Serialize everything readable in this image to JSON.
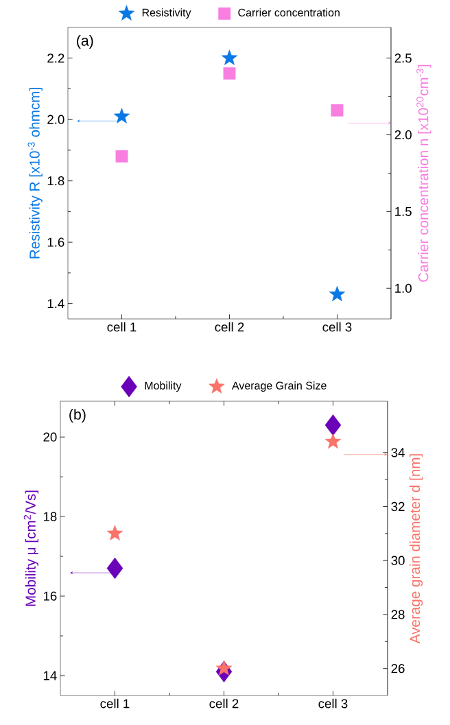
{
  "chart_data": [
    {
      "type": "scatter",
      "categories": [
        "cell 1",
        "cell 2",
        "cell 3"
      ],
      "ylabel": "Resistivity R [x10$^{-3}$ ohmcm]",
      "y2label": "Carrier concentration n [x10$^{20}$cm$^{-3}$]",
      "ylim": [
        1.35,
        2.3
      ],
      "yticks": [
        1.4,
        1.6,
        1.8,
        {
          "value": 2.0,
          "label": "2.0"
        },
        2.2
      ],
      "y2lim": [
        0.8,
        2.7
      ],
      "y2ticks": [
        {
          "value": 1.0,
          "label": "1.0"
        },
        1.5,
        {
          "value": 2.0,
          "label": "2.0"
        },
        2.5
      ],
      "legend": "top",
      "annotations": [
        "(a)"
      ],
      "series": [
        {
          "name": "Resistivity",
          "color": "#0a78e4",
          "marker": "star",
          "values": [
            2.01,
            2.2,
            1.43
          ]
        },
        {
          "name": "Carrier concentration",
          "color": "#f87ee0",
          "marker": "square",
          "axis": "y2",
          "values": [
            1.86,
            2.4,
            2.16
          ]
        }
      ]
    },
    {
      "type": "scatter",
      "categories": [
        "cell 1",
        "cell 2",
        "cell 3"
      ],
      "ylabel": "Mobility μ [cm$^{2}$/Vs]",
      "y2label": "Average grain diameter d [nm]",
      "ylim": [
        13.5,
        20.9
      ],
      "yticks": [
        14,
        16,
        18,
        20
      ],
      "y2lim": [
        25.0,
        35.9
      ],
      "y2ticks": [
        26,
        28,
        30,
        32,
        34
      ],
      "legend": "top",
      "annotations": [
        "(b)"
      ],
      "series": [
        {
          "name": "Mobility",
          "color": "#6a00b8",
          "marker": "diamond",
          "values": [
            16.7,
            14.1,
            20.3
          ]
        },
        {
          "name": "Average Grain Size",
          "color": "#fa7268",
          "marker": "star",
          "axis": "y2",
          "values": [
            31.0,
            26.0,
            34.4
          ]
        }
      ]
    }
  ]
}
